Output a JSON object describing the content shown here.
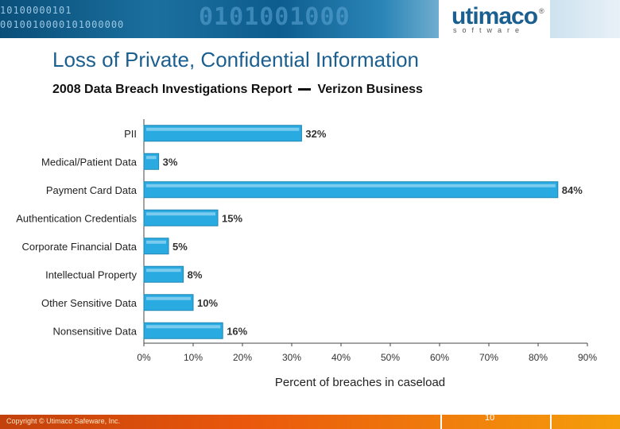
{
  "header": {
    "binary_row1": "10100000101",
    "binary_row2": "0010010000101000000",
    "binary_big": "0101001000",
    "logo_word": "utimaco",
    "logo_sub": "software",
    "logo_reg": "®"
  },
  "title": "Loss of Private, Confidential Information",
  "subtitle_left": "2008 Data Breach Investigations Report",
  "subtitle_right": "Verizon Business",
  "footer": {
    "copyright": "Copyright © Utimaco Safeware, Inc.",
    "page_number": "10"
  },
  "colors": {
    "bar_fill": "#29abe2",
    "bar_stroke": "#1f86b3",
    "bar_highlight": "#8fd3f1",
    "title": "#1a5f8f",
    "footer": "#ea580c"
  },
  "chart_data": {
    "type": "bar",
    "orientation": "horizontal",
    "categories": [
      "PII",
      "Medical/Patient Data",
      "Payment Card Data",
      "Authentication Credentials",
      "Corporate Financial Data",
      "Intellectual Property",
      "Other Sensitive Data",
      "Nonsensitive Data"
    ],
    "values": [
      32,
      3,
      84,
      15,
      5,
      8,
      10,
      16
    ],
    "value_labels": [
      "32%",
      "3%",
      "84%",
      "15%",
      "5%",
      "8%",
      "10%",
      "16%"
    ],
    "xticks": [
      "0%",
      "10%",
      "20%",
      "30%",
      "40%",
      "50%",
      "60%",
      "70%",
      "80%",
      "90%"
    ],
    "xlim": [
      0,
      90
    ],
    "xlabel": "Percent of breaches in caseload",
    "ylabel": "",
    "grid": false,
    "legend": "none"
  }
}
